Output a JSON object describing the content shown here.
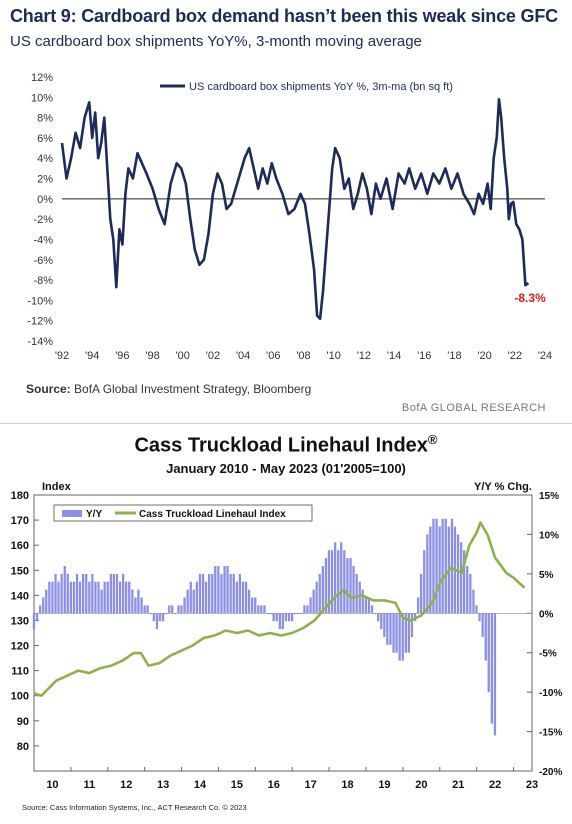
{
  "top": {
    "title": "Chart 9: Cardboard box demand hasn’t been this weak since GFC",
    "subtitle": "US cardboard box shipments YoY%, 3-month moving average",
    "source_label": "Source:",
    "source_text": "BofA Global Investment Strategy, Bloomberg",
    "brand": "BofA GLOBAL RESEARCH"
  },
  "bottom": {
    "title": "Cass Truckload Linehaul Index",
    "title_mark": "®",
    "subtitle": "January 2010 - May 2023 (01'2005=100)",
    "left_axis_title": "Index",
    "right_axis_title": "Y/Y % Chg.",
    "source": "Source: Cass Information Systems, Inc., ACT Research Co. © 2023"
  },
  "colors": {
    "navy": "#1c2b57",
    "red": "#e41a1c",
    "green": "#8db24a",
    "bar": "#8c8fe6"
  },
  "chart_data": [
    {
      "type": "line",
      "title": "Chart 9: Cardboard box demand hasn’t been this weak since GFC",
      "subtitle": "US cardboard box shipments YoY%, 3-month moving average",
      "series": [
        {
          "name": "US cardboard box shipments YoY %, 3m-ma (bn sq ft)",
          "points": [
            [
              1992.0,
              5.5
            ],
            [
              1992.3,
              2.0
            ],
            [
              1992.6,
              4.0
            ],
            [
              1992.9,
              6.5
            ],
            [
              1993.2,
              5.0
            ],
            [
              1993.5,
              8.0
            ],
            [
              1993.8,
              9.5
            ],
            [
              1994.0,
              6.0
            ],
            [
              1994.2,
              8.5
            ],
            [
              1994.4,
              4.0
            ],
            [
              1994.6,
              5.5
            ],
            [
              1994.8,
              8.0
            ],
            [
              1995.0,
              3.0
            ],
            [
              1995.2,
              -2.0
            ],
            [
              1995.4,
              -4.0
            ],
            [
              1995.6,
              -8.7
            ],
            [
              1995.8,
              -3.0
            ],
            [
              1996.0,
              -4.5
            ],
            [
              1996.2,
              0.5
            ],
            [
              1996.4,
              3.0
            ],
            [
              1996.7,
              2.0
            ],
            [
              1997.0,
              4.5
            ],
            [
              1997.3,
              3.5
            ],
            [
              1997.6,
              2.5
            ],
            [
              1998.0,
              1.0
            ],
            [
              1998.4,
              -1.0
            ],
            [
              1998.8,
              -2.5
            ],
            [
              1999.2,
              1.5
            ],
            [
              1999.6,
              3.5
            ],
            [
              1999.9,
              3.0
            ],
            [
              2000.2,
              1.5
            ],
            [
              2000.5,
              -2.0
            ],
            [
              2000.8,
              -5.0
            ],
            [
              2001.1,
              -6.5
            ],
            [
              2001.4,
              -6.0
            ],
            [
              2001.7,
              -3.5
            ],
            [
              2002.0,
              0.5
            ],
            [
              2002.3,
              2.5
            ],
            [
              2002.6,
              1.5
            ],
            [
              2002.9,
              -1.0
            ],
            [
              2003.2,
              -0.5
            ],
            [
              2003.5,
              1.0
            ],
            [
              2003.8,
              2.5
            ],
            [
              2004.1,
              4.0
            ],
            [
              2004.4,
              5.0
            ],
            [
              2004.7,
              3.0
            ],
            [
              2005.0,
              1.0
            ],
            [
              2005.3,
              3.0
            ],
            [
              2005.6,
              1.5
            ],
            [
              2005.9,
              3.5
            ],
            [
              2006.2,
              2.0
            ],
            [
              2006.6,
              0.5
            ],
            [
              2007.0,
              -1.5
            ],
            [
              2007.4,
              -1.0
            ],
            [
              2007.8,
              0.5
            ],
            [
              2008.1,
              -0.5
            ],
            [
              2008.4,
              -3.5
            ],
            [
              2008.7,
              -7.0
            ],
            [
              2008.9,
              -11.5
            ],
            [
              2009.1,
              -11.8
            ],
            [
              2009.3,
              -9.0
            ],
            [
              2009.5,
              -5.0
            ],
            [
              2009.7,
              -1.0
            ],
            [
              2009.9,
              3.0
            ],
            [
              2010.1,
              5.0
            ],
            [
              2010.4,
              4.0
            ],
            [
              2010.7,
              1.0
            ],
            [
              2011.0,
              2.0
            ],
            [
              2011.3,
              -1.0
            ],
            [
              2011.6,
              0.5
            ],
            [
              2011.9,
              2.5
            ],
            [
              2012.2,
              1.0
            ],
            [
              2012.5,
              -1.5
            ],
            [
              2012.8,
              1.5
            ],
            [
              2013.1,
              0.0
            ],
            [
              2013.5,
              2.0
            ],
            [
              2013.9,
              -1.0
            ],
            [
              2014.3,
              2.5
            ],
            [
              2014.7,
              1.5
            ],
            [
              2015.0,
              3.0
            ],
            [
              2015.4,
              1.0
            ],
            [
              2015.8,
              2.5
            ],
            [
              2016.2,
              0.5
            ],
            [
              2016.6,
              2.5
            ],
            [
              2017.0,
              1.5
            ],
            [
              2017.4,
              3.0
            ],
            [
              2017.8,
              1.0
            ],
            [
              2018.2,
              2.5
            ],
            [
              2018.6,
              0.5
            ],
            [
              2019.0,
              -0.5
            ],
            [
              2019.3,
              -1.5
            ],
            [
              2019.6,
              0.5
            ],
            [
              2019.9,
              -0.5
            ],
            [
              2020.2,
              1.5
            ],
            [
              2020.4,
              -1.0
            ],
            [
              2020.6,
              4.0
            ],
            [
              2020.8,
              6.0
            ],
            [
              2020.95,
              9.8
            ],
            [
              2021.1,
              8.0
            ],
            [
              2021.3,
              4.0
            ],
            [
              2021.5,
              1.0
            ],
            [
              2021.6,
              -2.0
            ],
            [
              2021.75,
              -0.5
            ],
            [
              2021.9,
              -0.3
            ],
            [
              2022.1,
              -2.5
            ],
            [
              2022.3,
              -3.0
            ],
            [
              2022.5,
              -4.0
            ],
            [
              2022.7,
              -8.5
            ],
            [
              2022.9,
              -8.3
            ]
          ]
        }
      ],
      "end_label": "-8.3%",
      "y_ticks": [
        "12%",
        "10%",
        "8%",
        "6%",
        "4%",
        "2%",
        "0%",
        "-2%",
        "-4%",
        "-6%",
        "-8%",
        "-10%",
        "-12%",
        "-14%"
      ],
      "x_ticks": [
        "'92",
        "'94",
        "'96",
        "'98",
        "'00",
        "'02",
        "'04",
        "'06",
        "'08",
        "'10",
        "'12",
        "'14",
        "'16",
        "'18",
        "'20",
        "'22",
        "'24"
      ],
      "ylim": [
        -14,
        12
      ],
      "xlim": [
        1992,
        2024
      ],
      "legend_position": "top"
    },
    {
      "type": "bar+line",
      "title": "Cass Truckload Linehaul Index",
      "subtitle": "January 2010 - May 2023 (01'2005=100)",
      "left_axis": {
        "title": "Index",
        "ticks": [
          "180",
          "170",
          "160",
          "150",
          "140",
          "130",
          "120",
          "110",
          "100",
          "90",
          "80"
        ],
        "range": [
          70,
          180
        ]
      },
      "right_axis": {
        "title": "Y/Y % Chg.",
        "ticks": [
          "15%",
          "10%",
          "5%",
          "0%",
          "-5%",
          "-10%",
          "-15%",
          "-20%"
        ],
        "range": [
          -20,
          15
        ]
      },
      "x_ticks": [
        "10",
        "11",
        "12",
        "13",
        "14",
        "15",
        "16",
        "17",
        "18",
        "19",
        "20",
        "21",
        "22",
        "23"
      ],
      "xlim": [
        2010,
        2023.5
      ],
      "legend": [
        "Y/Y",
        "Cass Truckload Linehaul Index"
      ],
      "legend_position": "top-left",
      "index_series": {
        "name": "Cass Truckload Linehaul Index",
        "points": [
          [
            2010.0,
            101
          ],
          [
            2010.2,
            100
          ],
          [
            2010.4,
            103
          ],
          [
            2010.6,
            106
          ],
          [
            2010.9,
            108
          ],
          [
            2011.2,
            110
          ],
          [
            2011.5,
            109
          ],
          [
            2011.8,
            111
          ],
          [
            2012.1,
            112
          ],
          [
            2012.4,
            114
          ],
          [
            2012.7,
            117
          ],
          [
            2012.9,
            117
          ],
          [
            2013.1,
            112
          ],
          [
            2013.4,
            113
          ],
          [
            2013.7,
            116
          ],
          [
            2014.0,
            118
          ],
          [
            2014.3,
            120
          ],
          [
            2014.6,
            123
          ],
          [
            2014.9,
            124
          ],
          [
            2015.2,
            126
          ],
          [
            2015.5,
            125
          ],
          [
            2015.8,
            126
          ],
          [
            2016.1,
            124
          ],
          [
            2016.4,
            125
          ],
          [
            2016.7,
            124
          ],
          [
            2017.0,
            125
          ],
          [
            2017.3,
            127
          ],
          [
            2017.6,
            130
          ],
          [
            2017.9,
            135
          ],
          [
            2018.2,
            140
          ],
          [
            2018.4,
            142
          ],
          [
            2018.6,
            139
          ],
          [
            2018.9,
            140
          ],
          [
            2019.2,
            138
          ],
          [
            2019.5,
            138
          ],
          [
            2019.8,
            137
          ],
          [
            2020.0,
            131
          ],
          [
            2020.2,
            130
          ],
          [
            2020.5,
            132
          ],
          [
            2020.8,
            137
          ],
          [
            2021.0,
            145
          ],
          [
            2021.3,
            151
          ],
          [
            2021.6,
            149
          ],
          [
            2021.8,
            160
          ],
          [
            2022.0,
            165
          ],
          [
            2022.1,
            169
          ],
          [
            2022.3,
            164
          ],
          [
            2022.5,
            155
          ],
          [
            2022.8,
            149
          ],
          [
            2023.0,
            147
          ],
          [
            2023.3,
            143
          ]
        ]
      },
      "yoy_series": {
        "name": "Y/Y",
        "start": 2010.0,
        "step": 0.0833,
        "values": [
          -2,
          -1,
          1,
          2,
          3,
          4,
          4,
          5,
          4,
          5,
          6,
          5,
          4,
          4,
          5,
          4,
          5,
          5,
          4,
          5,
          4,
          4,
          3,
          4,
          4,
          5,
          5,
          5,
          4,
          5,
          4,
          4,
          3,
          2,
          3,
          2,
          1,
          1,
          0,
          -1,
          -2,
          -1,
          -1,
          0,
          1,
          1,
          0,
          1,
          1,
          2,
          3,
          4,
          3,
          4,
          5,
          5,
          4,
          5,
          5,
          6,
          6,
          5,
          6,
          6,
          5,
          5,
          4,
          5,
          4,
          4,
          3,
          2,
          2,
          1,
          1,
          1,
          0,
          0,
          -1,
          -1,
          -2,
          -2,
          -1,
          -1,
          -1,
          0,
          0,
          0,
          1,
          1,
          2,
          3,
          4,
          5,
          6,
          7,
          8,
          8,
          9,
          8,
          9,
          8,
          7,
          7,
          6,
          5,
          4,
          3,
          2,
          2,
          1,
          0,
          -1,
          -2,
          -3,
          -4,
          -4,
          -5,
          -5,
          -6,
          -6,
          -5,
          -5,
          -3,
          -1,
          2,
          5,
          8,
          10,
          11,
          12,
          12,
          11,
          12,
          12,
          11,
          12,
          11,
          10,
          9,
          8,
          6,
          5,
          3,
          1,
          -1,
          -3,
          -6,
          -10,
          -14,
          -15.5
        ]
      }
    }
  ]
}
